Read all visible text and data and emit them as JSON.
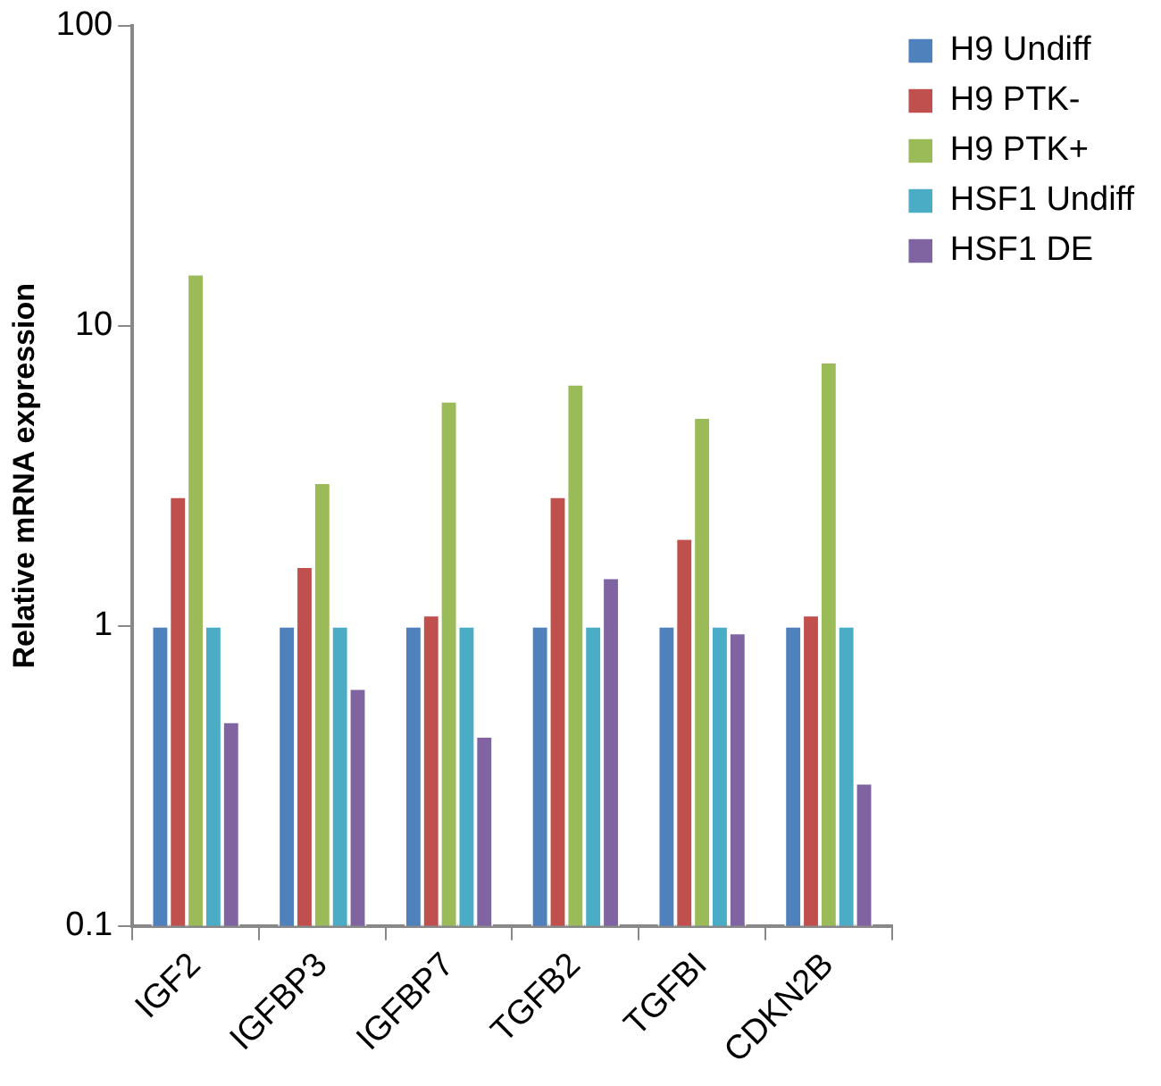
{
  "chart_data": {
    "type": "bar",
    "ylabel": "Relative mRNA expression",
    "categories": [
      "IGF2",
      "IGFBP3",
      "IGFBP7",
      "TGFB2",
      "TGFBI",
      "CDKN2B"
    ],
    "series": [
      {
        "name": "H9 Undiff",
        "color": "#4f81bd",
        "values": [
          1,
          1,
          1,
          1,
          1,
          1
        ]
      },
      {
        "name": "H9 PTK-",
        "color": "#c0504d",
        "values": [
          2.7,
          1.58,
          1.09,
          2.7,
          1.96,
          1.09
        ]
      },
      {
        "name": "H9 PTK+",
        "color": "#9bbb59",
        "values": [
          14.9,
          3.01,
          5.62,
          6.41,
          4.96,
          7.59
        ]
      },
      {
        "name": "HSF1 Undiff",
        "color": "#4bacc6",
        "values": [
          1,
          1,
          1,
          1,
          1,
          1
        ]
      },
      {
        "name": "HSF1 DE",
        "color": "#8064a2",
        "values": [
          0.48,
          0.62,
          0.43,
          1.45,
          0.95,
          0.3
        ]
      }
    ],
    "log": true,
    "ylim": [
      0.1,
      100
    ],
    "yticks": [
      0.1,
      1,
      10,
      100
    ],
    "grid": false,
    "legend": "top right"
  }
}
